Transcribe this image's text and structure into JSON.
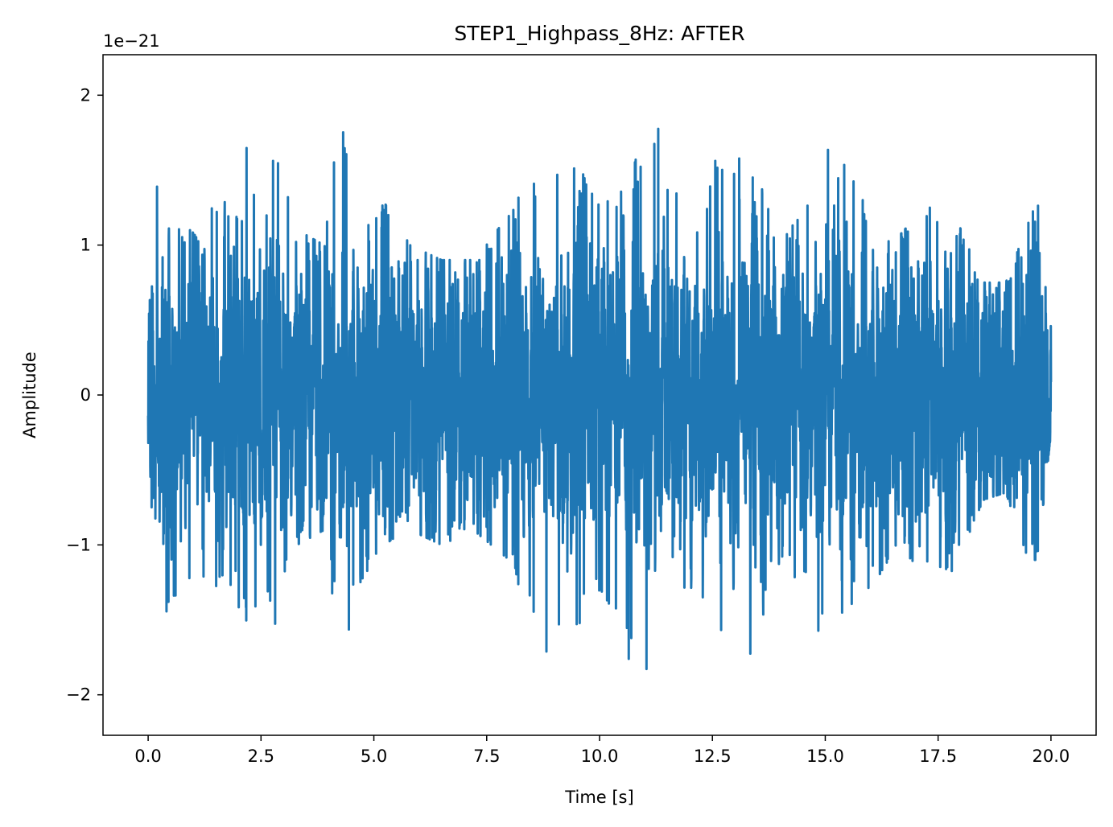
{
  "chart_data": {
    "type": "line",
    "title": "STEP1_Highpass_8Hz: AFTER",
    "xlabel": "Time [s]",
    "ylabel": "Amplitude",
    "y_offset_label": "1e−21",
    "y_scale_exponent": -21,
    "xlim": [
      -1.0,
      21.0
    ],
    "ylim": [
      -2.27,
      2.27
    ],
    "x_ticks": [
      0.0,
      2.5,
      5.0,
      7.5,
      10.0,
      12.5,
      15.0,
      17.5,
      20.0
    ],
    "x_tick_labels": [
      "0.0",
      "2.5",
      "5.0",
      "7.5",
      "10.0",
      "12.5",
      "15.0",
      "17.5",
      "20.0"
    ],
    "y_ticks": [
      -2,
      -1,
      0,
      1,
      2
    ],
    "y_tick_labels": [
      "−2",
      "−1",
      "0",
      "1",
      "2"
    ],
    "grid": false,
    "legend": false,
    "line_color": "#1f77b4",
    "series": [
      {
        "x_start": 0.0,
        "x_end": 20.0,
        "envelope_x": [
          0.0,
          0.2,
          0.3,
          0.7,
          1.2,
          1.8,
          2.2,
          2.6,
          2.8,
          3.3,
          3.9,
          4.2,
          4.4,
          4.6,
          5.2,
          5.8,
          6.5,
          7.2,
          8.0,
          8.7,
          9.3,
          10.0,
          10.5,
          11.0,
          11.15,
          11.3,
          11.6,
          12.2,
          12.7,
          13.3,
          14.0,
          14.6,
          15.1,
          15.4,
          16.0,
          16.6,
          17.2,
          17.8,
          18.5,
          19.0,
          19.5,
          19.7,
          20.0
        ],
        "envelope_max": [
          0.45,
          1.45,
          1.45,
          1.2,
          1.0,
          1.7,
          1.65,
          1.35,
          1.75,
          1.1,
          1.0,
          1.8,
          1.75,
          1.35,
          1.3,
          1.0,
          0.9,
          0.9,
          1.2,
          1.6,
          1.6,
          1.35,
          1.45,
          1.75,
          1.85,
          2.05,
          1.4,
          1.5,
          1.65,
          1.55,
          1.15,
          1.3,
          1.75,
          1.6,
          1.2,
          1.05,
          1.25,
          1.25,
          0.75,
          0.75,
          1.15,
          1.3,
          0.45
        ],
        "envelope_min": [
          -0.3,
          -1.5,
          -1.55,
          -1.45,
          -1.2,
          -1.45,
          -1.55,
          -1.5,
          -1.6,
          -1.0,
          -0.9,
          -1.8,
          -1.7,
          -1.3,
          -1.0,
          -0.9,
          -1.0,
          -0.9,
          -1.1,
          -1.8,
          -1.75,
          -1.3,
          -1.8,
          -1.9,
          -2.05,
          -1.7,
          -1.5,
          -1.45,
          -1.65,
          -1.8,
          -1.1,
          -1.4,
          -1.75,
          -1.6,
          -1.3,
          -1.0,
          -1.2,
          -1.2,
          -0.7,
          -0.65,
          -1.1,
          -1.1,
          -0.25
        ],
        "rms": 0.45
      }
    ]
  }
}
